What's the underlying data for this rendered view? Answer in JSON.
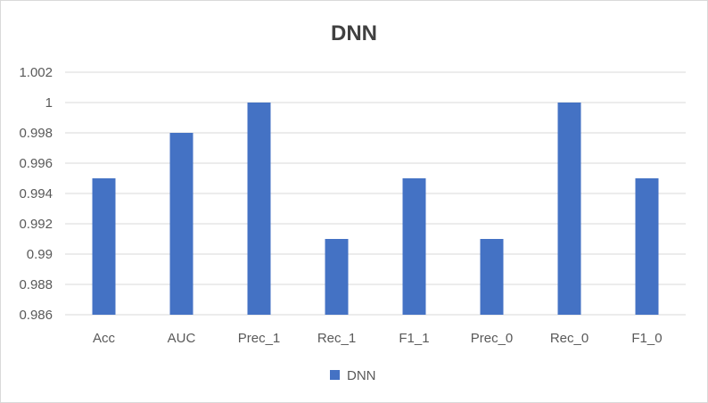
{
  "chart_data": {
    "type": "bar",
    "title": "DNN",
    "xlabel": "",
    "ylabel": "",
    "categories": [
      "Acc",
      "AUC",
      "Prec_1",
      "Rec_1",
      "F1_1",
      "Prec_0",
      "Rec_0",
      "F1_0"
    ],
    "series": [
      {
        "name": "DNN",
        "values": [
          0.995,
          0.998,
          1.0,
          0.991,
          0.995,
          0.991,
          1.0,
          0.995
        ],
        "color": "#4472c4"
      }
    ],
    "ylim": [
      0.986,
      1.002
    ],
    "yticks": [
      "0.986",
      "0.988",
      "0.99",
      "0.992",
      "0.994",
      "0.996",
      "0.998",
      "1",
      "1.002"
    ],
    "grid": true,
    "legend_position": "bottom"
  }
}
